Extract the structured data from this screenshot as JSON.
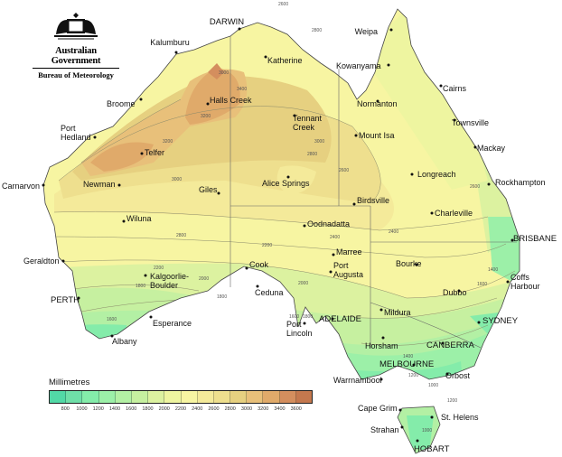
{
  "logo": {
    "line1": "Australian Government",
    "line2": "Bureau of Meteorology"
  },
  "legend": {
    "title": "Millimetres",
    "labels": [
      "800",
      "1000",
      "1200",
      "1400",
      "1600",
      "1800",
      "2000",
      "2200",
      "2400",
      "2600",
      "2800",
      "3000",
      "3200",
      "3400",
      "3600"
    ],
    "colors": [
      "#52d9a6",
      "#6fdfa8",
      "#84ecaa",
      "#9cf0a8",
      "#b3f0a4",
      "#c6f0a0",
      "#dcf2a0",
      "#eef5a0",
      "#f7f5a2",
      "#f4ea9a",
      "#eedf8e",
      "#e6d080",
      "#e8c07a",
      "#e0aa6a",
      "#d48e5e",
      "#c4784e"
    ]
  },
  "cities": [
    "DARWIN",
    "Weipa",
    "Kalumburu",
    "Katherine",
    "Kowanyama",
    "Cairns",
    "Halls Creek",
    "Broome",
    "Normanton",
    "Townsville",
    "Port Hedland",
    "Tennant Creek",
    "Mount Isa",
    "Mackay",
    "Telfer",
    "Rockhampton",
    "Newman",
    "Longreach",
    "Giles",
    "Alice Springs",
    "Birdsville",
    "Carnarvon",
    "Wiluna",
    "Charleville",
    "Oodnadatta",
    "BRISBANE",
    "Marree",
    "Bourke",
    "Geraldton",
    "Cook",
    "Coffs Harbour",
    "Kalgoorlie-Boulder",
    "PERTH",
    "Ceduna",
    "Port Augusta",
    "Dubbo",
    "Esperance",
    "Port Lincoln",
    "ADELAIDE",
    "Mildura",
    "SYDNEY",
    "Horsham",
    "CANBERRA",
    "Albany",
    "MELBOURNE",
    "Warrnambool",
    "Orbost",
    "Cape Grim",
    "St. Helens",
    "Strahan",
    "HOBART"
  ],
  "contour_labels": [
    "2600",
    "2800",
    "3000",
    "3400",
    "3200",
    "3200",
    "3000",
    "2800",
    "3000",
    "2800",
    "2600",
    "2400",
    "2200",
    "2000",
    "1800",
    "1600",
    "1800",
    "2000",
    "2200",
    "2400",
    "2600",
    "1800",
    "1600",
    "1400",
    "1200",
    "1000",
    "1600",
    "1400",
    "1200",
    "1000"
  ]
}
